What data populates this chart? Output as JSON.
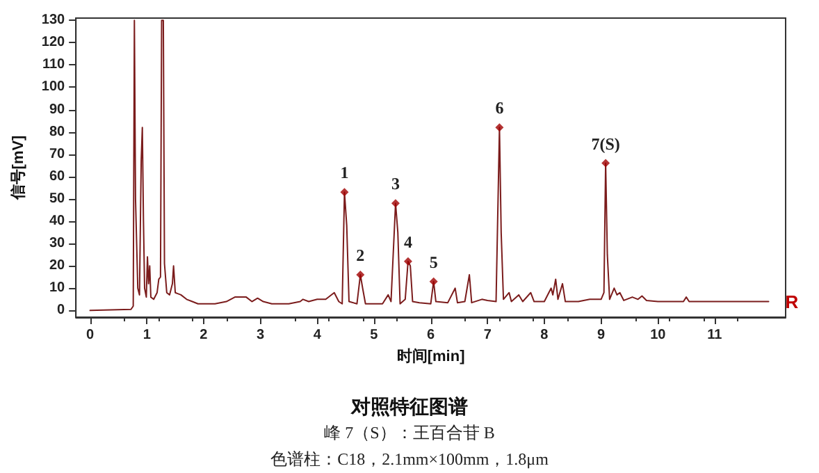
{
  "chart_data": {
    "type": "line",
    "title": "对照特征图谱",
    "subtitle": "峰 7（S）：王百合苷 B",
    "xlabel": "时间[min]",
    "ylabel": "信号[mV]",
    "annotations": [
      "色谱柱：C18，2.1mm×100mm，1.8μm",
      {
        "text": "1",
        "x": 4.48,
        "y": 53
      },
      {
        "text": "2",
        "x": 4.76,
        "y": 16
      },
      {
        "text": "3",
        "x": 5.38,
        "y": 48
      },
      {
        "text": "4",
        "x": 5.6,
        "y": 22
      },
      {
        "text": "5",
        "x": 6.05,
        "y": 13
      },
      {
        "text": "6",
        "x": 7.21,
        "y": 82
      },
      {
        "text": "7(S)",
        "x": 9.08,
        "y": 66
      }
    ],
    "xlim": [
      -0.25,
      12.25
    ],
    "xticks": [
      0,
      1,
      2,
      3,
      4,
      5,
      6,
      7,
      8,
      9,
      10,
      11
    ],
    "ylim": [
      -3,
      131
    ],
    "yticks": [
      0,
      10,
      20,
      30,
      40,
      50,
      60,
      70,
      80,
      90,
      100,
      110,
      120,
      130
    ],
    "grid": false,
    "legend": false,
    "line_style": "solid",
    "series": [
      {
        "name": "R",
        "marker": "none",
        "color": "#7b1c1c",
        "x": [
          0,
          0.72,
          0.76,
          0.78,
          0.8,
          0.84,
          0.87,
          0.9,
          0.92,
          0.94,
          0.96,
          0.99,
          1.01,
          1.03,
          1.05,
          1.07,
          1.12,
          1.18,
          1.21,
          1.24,
          1.26,
          1.29,
          1.31,
          1.35,
          1.4,
          1.45,
          1.47,
          1.5,
          1.6,
          1.7,
          1.8,
          1.9,
          2.0,
          2.2,
          2.4,
          2.55,
          2.65,
          2.75,
          2.85,
          2.95,
          3.05,
          3.2,
          3.5,
          3.7,
          3.75,
          3.85,
          4.0,
          4.15,
          4.3,
          4.38,
          4.44,
          4.48,
          4.52,
          4.56,
          4.7,
          4.76,
          4.8,
          4.85,
          5.05,
          5.15,
          5.25,
          5.3,
          5.38,
          5.42,
          5.46,
          5.55,
          5.6,
          5.64,
          5.68,
          5.8,
          6.0,
          6.05,
          6.09,
          6.3,
          6.43,
          6.47,
          6.6,
          6.68,
          6.72,
          6.9,
          7.0,
          7.15,
          7.21,
          7.24,
          7.28,
          7.38,
          7.42,
          7.55,
          7.62,
          7.76,
          7.82,
          8.0,
          8.12,
          8.15,
          8.2,
          8.24,
          8.32,
          8.37,
          8.6,
          8.8,
          9.0,
          9.05,
          9.08,
          9.11,
          9.15,
          9.23,
          9.28,
          9.33,
          9.4,
          9.55,
          9.65,
          9.72,
          9.8,
          10.0,
          10.45,
          10.5,
          10.55,
          11.0,
          11.95
        ],
        "values": [
          0,
          0.5,
          2,
          130,
          50,
          10,
          7,
          67,
          82,
          40,
          10,
          6,
          24,
          12,
          20,
          6,
          5,
          8,
          14,
          15,
          130,
          130,
          21,
          8,
          7,
          12,
          20,
          8,
          7,
          5,
          4,
          3,
          3,
          3,
          4,
          6,
          6,
          6,
          4,
          5.5,
          4,
          3,
          3,
          4,
          5,
          4,
          5,
          5,
          8,
          4,
          3,
          53,
          38,
          4,
          3,
          16,
          10,
          3,
          3,
          3,
          7,
          4,
          48,
          35,
          3,
          5,
          22,
          20,
          4,
          3.5,
          3,
          13,
          4,
          3.5,
          10,
          3.5,
          4,
          16,
          3.5,
          5,
          4.5,
          4,
          82,
          35,
          5,
          8,
          4,
          7,
          4,
          8,
          4,
          4,
          10,
          7,
          14,
          5,
          12,
          4,
          4,
          5,
          5,
          8,
          66,
          25,
          5,
          10,
          7,
          8,
          4.5,
          6,
          5,
          6.5,
          4.5,
          4,
          4,
          6,
          4,
          4,
          4
        ]
      },
      {
        "type": "scatter",
        "marker": "diamond",
        "color": "#a00000",
        "x": [
          4.48,
          4.76,
          5.38,
          5.6,
          6.05,
          7.21,
          9.08
        ],
        "values": [
          53,
          16,
          48,
          22,
          13,
          82,
          66
        ]
      }
    ]
  }
}
